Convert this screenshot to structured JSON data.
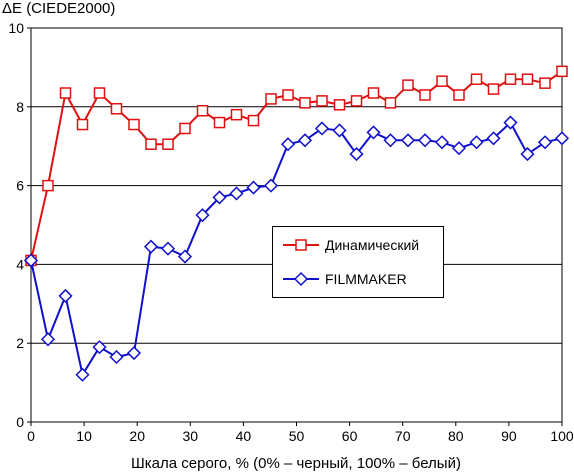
{
  "chart_data": {
    "type": "line",
    "title": "",
    "ylabel": "ΔE (CIEDE2000)",
    "xlabel": "Шкала серого, % (0% – черный, 100% – белый)",
    "xlim": [
      0,
      100
    ],
    "ylim": [
      0,
      10
    ],
    "xticks": [
      "0",
      "10",
      "20",
      "30",
      "40",
      "50",
      "60",
      "70",
      "80",
      "90",
      "100"
    ],
    "yticks": [
      "0",
      "2",
      "4",
      "6",
      "8",
      "10"
    ],
    "grid": "horizontal",
    "legend_position": "center-right",
    "x": [
      0,
      3.2,
      6.5,
      9.7,
      12.9,
      16.1,
      19.4,
      22.6,
      25.8,
      29.0,
      32.3,
      35.5,
      38.7,
      41.9,
      45.2,
      48.4,
      51.6,
      54.8,
      58.1,
      61.3,
      64.5,
      67.7,
      71.0,
      74.2,
      77.4,
      80.6,
      83.9,
      87.1,
      90.3,
      93.5,
      96.8,
      100
    ],
    "series": [
      {
        "name": "Динамический",
        "color": "#e01010",
        "marker": "square",
        "values": [
          4.1,
          6.0,
          8.35,
          7.55,
          8.35,
          7.95,
          7.55,
          7.05,
          7.05,
          7.45,
          7.9,
          7.6,
          7.8,
          7.65,
          8.2,
          8.3,
          8.1,
          8.15,
          8.05,
          8.15,
          8.35,
          8.1,
          8.55,
          8.3,
          8.65,
          8.3,
          8.7,
          8.45,
          8.7,
          8.7,
          8.6,
          8.9
        ]
      },
      {
        "name": "FILMMAKER",
        "color": "#1010cc",
        "marker": "diamond",
        "values": [
          4.1,
          2.1,
          3.2,
          1.2,
          1.9,
          1.65,
          1.75,
          4.45,
          4.4,
          4.2,
          5.25,
          5.7,
          5.8,
          5.95,
          6.0,
          7.05,
          7.15,
          7.45,
          7.4,
          6.8,
          7.35,
          7.15,
          7.15,
          7.15,
          7.1,
          6.95,
          7.1,
          7.2,
          7.6,
          6.8,
          7.1,
          7.2
        ]
      }
    ]
  }
}
